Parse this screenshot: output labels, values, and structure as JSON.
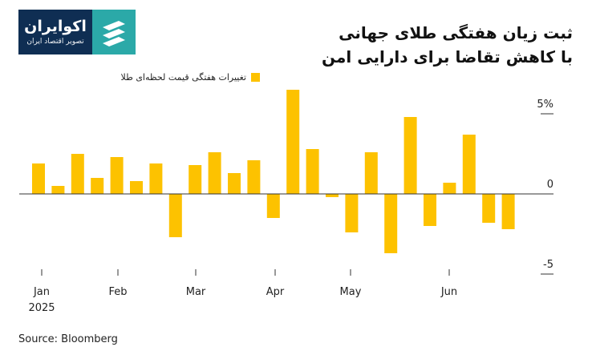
{
  "logo": {
    "name": "اکوایران",
    "tagline": "تصویر اقتصاد ایران"
  },
  "title": {
    "line1": "ثبت زیان هفتگی طلای جهانی",
    "line2": "با کاهش تقاضا برای دارایی امن"
  },
  "legend_label": "تغییرات هفتگی قیمت لحظه‌ای طلا",
  "source": "Source: Bloomberg",
  "colors": {
    "bar": "#FDC200",
    "axis": "#333333"
  },
  "chart_data": {
    "type": "bar",
    "series": [
      {
        "values": [
          1.9,
          0.5,
          2.5,
          1.0,
          2.3,
          0.8,
          1.9,
          -2.7,
          1.8,
          2.6,
          1.3,
          2.1,
          -1.5,
          6.5,
          2.8,
          -0.2,
          -2.4,
          2.6,
          -3.7,
          4.8,
          -2.0,
          0.7,
          3.7,
          -1.8,
          -2.2
        ]
      }
    ],
    "x_tick_labels": [
      "Jan",
      "Feb",
      "Mar",
      "Apr",
      "May",
      "Jun"
    ],
    "x_sub_label": "2025",
    "y_ticks": [
      {
        "value": 5,
        "label": "5%"
      },
      {
        "value": 0,
        "label": "0"
      },
      {
        "value": -5,
        "label": "-5"
      }
    ],
    "ylim": [
      -5.2,
      6.8
    ],
    "grid": false
  }
}
